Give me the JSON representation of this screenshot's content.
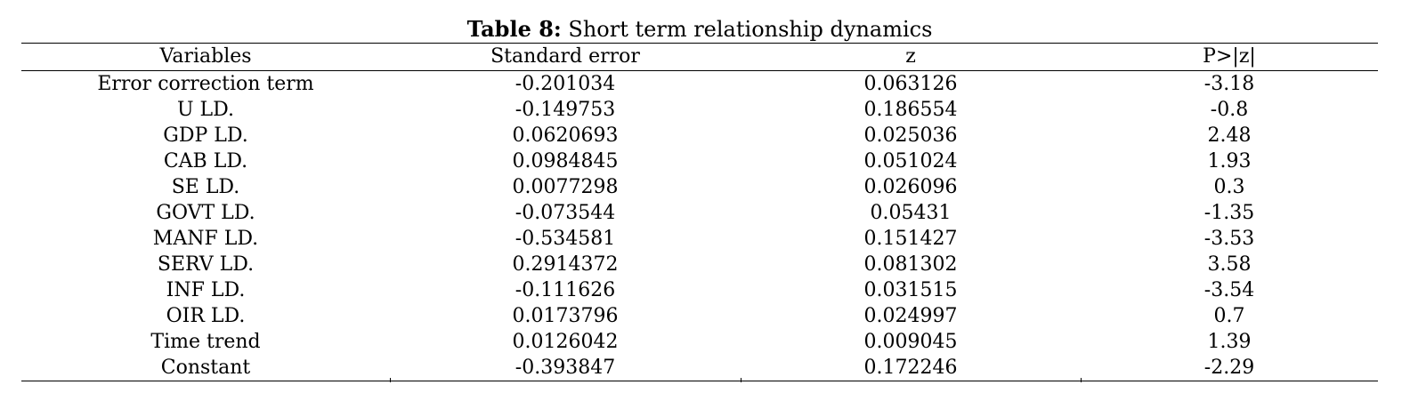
{
  "caption": {
    "label": "Table 8:",
    "title": "Short term relationship dynamics"
  },
  "table": {
    "headers": [
      "Variables",
      "Standard error",
      "z",
      "P>|z|"
    ],
    "rows": [
      [
        "Error correction term",
        "-0.201034",
        "0.063126",
        "-3.18"
      ],
      [
        "U LD.",
        "-0.149753",
        "0.186554",
        "-0.8"
      ],
      [
        "GDP LD.",
        "0.0620693",
        "0.025036",
        "2.48"
      ],
      [
        "CAB LD.",
        "0.0984845",
        "0.051024",
        "1.93"
      ],
      [
        "SE LD.",
        "0.0077298",
        "0.026096",
        "0.3"
      ],
      [
        "GOVT LD.",
        "-0.073544",
        "0.05431",
        "-1.35"
      ],
      [
        "MANF LD.",
        "-0.534581",
        "0.151427",
        "-3.53"
      ],
      [
        "SERV LD.",
        "0.2914372",
        "0.081302",
        "3.58"
      ],
      [
        "INF LD.",
        "-0.111626",
        "0.031515",
        "-3.54"
      ],
      [
        "OIR LD.",
        "0.0173796",
        "0.024997",
        "0.7"
      ],
      [
        "Time trend",
        "0.0126042",
        "0.009045",
        "1.39"
      ],
      [
        "Constant",
        "-0.393847",
        "0.172246",
        "-2.29"
      ]
    ]
  }
}
